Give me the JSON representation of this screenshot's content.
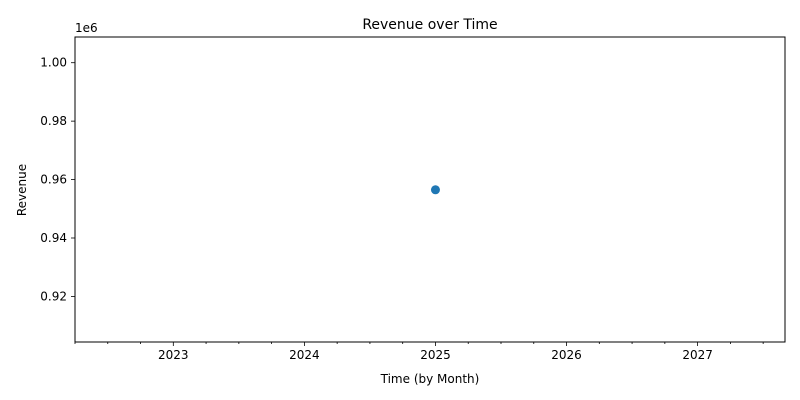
{
  "chart_data": {
    "type": "scatter",
    "title": "Revenue over Time",
    "xlabel": "Time (by Month)",
    "ylabel": "Revenue",
    "y_offset_label": "1e6",
    "xlim": [
      "2022-04",
      "2027-09"
    ],
    "ylim": [
      0.9044,
      1.0088
    ],
    "x_major_ticks": [
      {
        "value": "2023-01",
        "label": "2023"
      },
      {
        "value": "2024-01",
        "label": "2024"
      },
      {
        "value": "2025-01",
        "label": "2025"
      },
      {
        "value": "2026-01",
        "label": "2026"
      },
      {
        "value": "2027-01",
        "label": "2027"
      }
    ],
    "x_minor_ticks": [
      "2022-04",
      "2022-07",
      "2022-10",
      "2023-04",
      "2023-07",
      "2023-10",
      "2024-04",
      "2024-07",
      "2024-10",
      "2025-04",
      "2025-07",
      "2025-10",
      "2026-04",
      "2026-07",
      "2026-10",
      "2027-04",
      "2027-07"
    ],
    "y_ticks": [
      {
        "value": 0.92,
        "label": "0.92"
      },
      {
        "value": 0.94,
        "label": "0.94"
      },
      {
        "value": 0.96,
        "label": "0.96"
      },
      {
        "value": 0.98,
        "label": "0.98"
      },
      {
        "value": 1.0,
        "label": "1.00"
      }
    ],
    "grid": false,
    "series": [
      {
        "color": "#1f77b4",
        "points": [
          {
            "x": "2025-01",
            "y": 0.9565
          }
        ]
      }
    ]
  }
}
